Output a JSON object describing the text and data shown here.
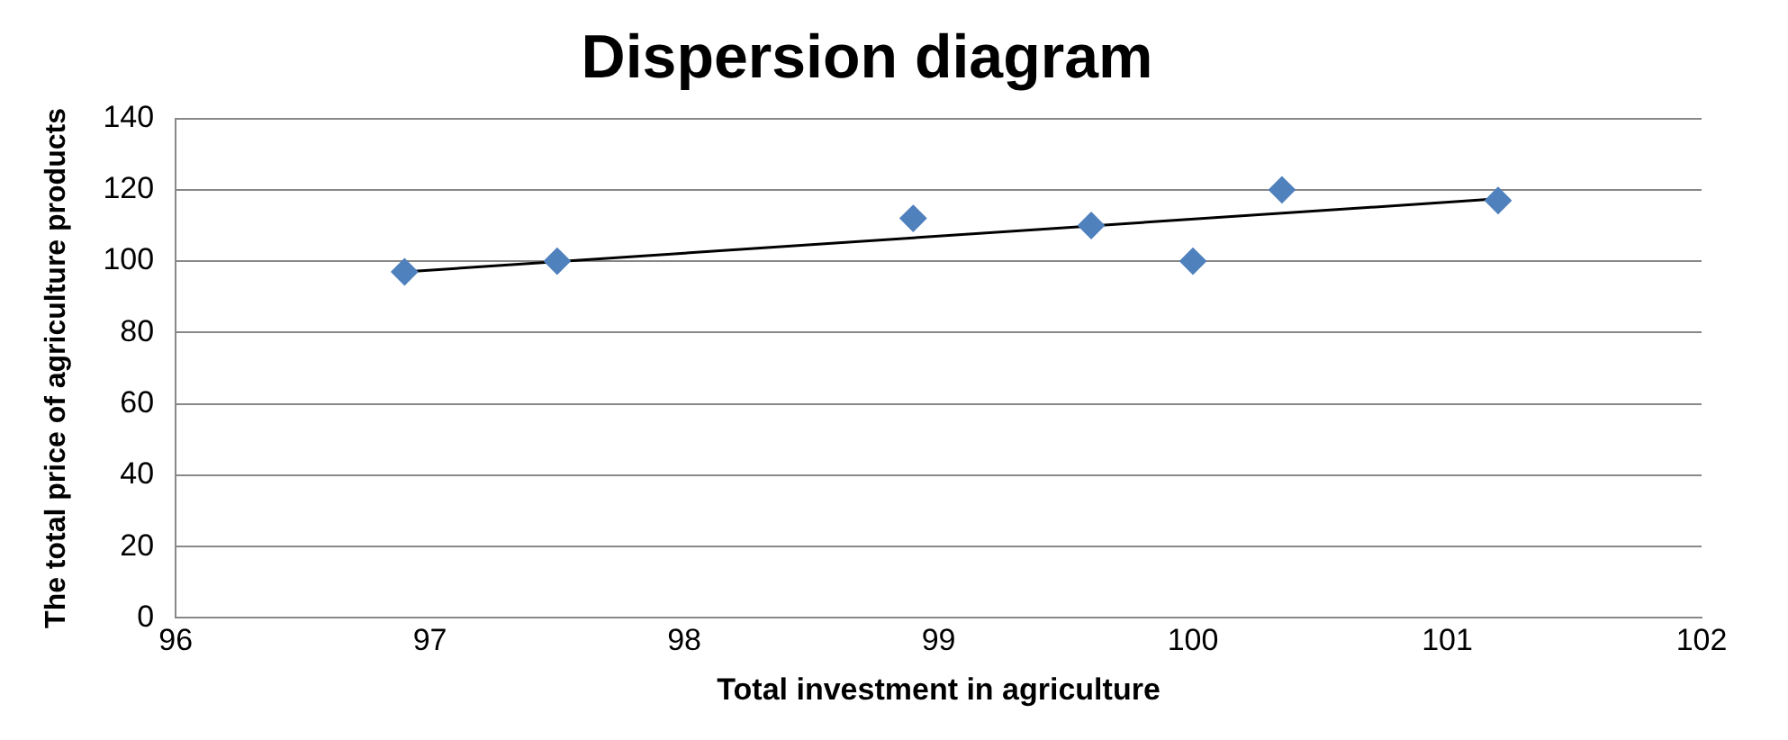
{
  "chart_data": {
    "type": "scatter",
    "title": "Dispersion diagram",
    "xlabel": "Total investment in agriculture",
    "ylabel": "The total price of agriculture products",
    "xlim": [
      96,
      102
    ],
    "xticks": [
      96,
      97,
      98,
      99,
      100,
      101,
      102
    ],
    "ylim": [
      0,
      140
    ],
    "yticks": [
      0,
      20,
      40,
      60,
      80,
      100,
      120,
      140
    ],
    "grid": "y",
    "legend": false,
    "marker": "diamond",
    "series": [
      {
        "color": "#4f81bd",
        "x": [
          96.9,
          97.5,
          98.9,
          99.6,
          100,
          100.35,
          101.2
        ],
        "values": [
          97,
          100,
          112,
          110,
          100,
          120,
          117
        ]
      },
      {
        "type": "line",
        "color": "#000000",
        "marker": "none",
        "x": [
          96.9,
          101.2
        ],
        "values": [
          97,
          117.5
        ]
      }
    ]
  }
}
